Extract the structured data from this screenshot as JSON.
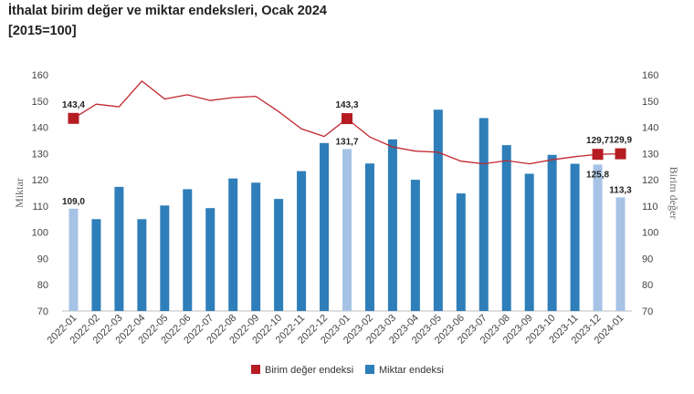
{
  "header": {
    "title": "İthalat birim değer ve miktar endeksleri, Ocak 2024",
    "subtitle": "[2015=100]"
  },
  "colors": {
    "bar_dark": "#2E7EB9",
    "bar_light": "#A6C3E6",
    "line": "#C0272D",
    "marker": "#B51C22"
  },
  "chart_data": {
    "type": "bar+line",
    "categories": [
      "2022-01",
      "2022-02",
      "2022-03",
      "2022-04",
      "2022-05",
      "2022-06",
      "2022-07",
      "2022-08",
      "2022-09",
      "2022-10",
      "2022-11",
      "2022-12",
      "2023-01",
      "2023-02",
      "2023-03",
      "2023-04",
      "2023-05",
      "2023-06",
      "2023-07",
      "2023-08",
      "2023-09",
      "2023-10",
      "2023-11",
      "2023-12",
      "2024-01"
    ],
    "series": [
      {
        "name": "Birim değer endeksi",
        "type": "line",
        "axis": "right",
        "values": [
          143.4,
          148.8,
          147.8,
          157.6,
          150.8,
          152.4,
          150.2,
          151.3,
          151.8,
          146.0,
          139.4,
          136.5,
          143.3,
          136.3,
          132.5,
          130.9,
          130.5,
          127.1,
          126.1,
          127.3,
          126.1,
          127.6,
          128.8,
          129.7,
          129.9
        ],
        "highlighted_markers": [
          0,
          12,
          23,
          24
        ]
      },
      {
        "name": "Miktar endeksi",
        "type": "bar",
        "axis": "left",
        "values": [
          109.0,
          105.0,
          117.3,
          105.0,
          110.2,
          116.4,
          109.2,
          120.5,
          118.9,
          112.7,
          123.3,
          134.0,
          131.7,
          126.2,
          135.4,
          120.0,
          146.7,
          114.8,
          143.5,
          133.2,
          122.3,
          129.5,
          126.1,
          125.8,
          113.3
        ],
        "highlighted_bars": [
          0,
          12,
          23,
          24
        ]
      }
    ],
    "data_labels": [
      {
        "series": 1,
        "index": 0,
        "text": "109,0"
      },
      {
        "series": 1,
        "index": 12,
        "text": "131,7"
      },
      {
        "series": 1,
        "index": 23,
        "text": "125,8"
      },
      {
        "series": 1,
        "index": 24,
        "text": "113,3"
      },
      {
        "series": 0,
        "index": 0,
        "text": "143,4"
      },
      {
        "series": 0,
        "index": 12,
        "text": "143,3"
      },
      {
        "series": 0,
        "index": 23,
        "text": "129,7"
      },
      {
        "series": 0,
        "index": 24,
        "text": "129,9"
      }
    ],
    "y_left": {
      "label": "Miktar",
      "min": 70,
      "max": 160,
      "ticks": [
        70,
        80,
        90,
        100,
        110,
        120,
        130,
        140,
        150,
        160
      ]
    },
    "y_right": {
      "label": "Birim değer",
      "min": 70,
      "max": 160,
      "ticks": [
        70,
        80,
        90,
        100,
        110,
        120,
        130,
        140,
        150,
        160
      ]
    },
    "grid": false,
    "legend_position": "bottom"
  }
}
